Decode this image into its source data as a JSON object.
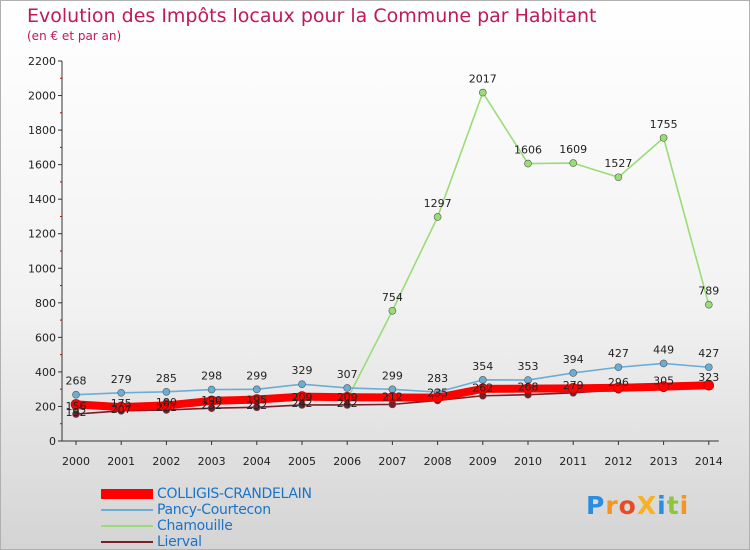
{
  "chart_data": {
    "type": "line",
    "title": "Evolution des Impôts locaux pour la Commune par Habitant",
    "subtitle": "(en € et par an)",
    "xlabel": "",
    "ylabel": "",
    "x": [
      "2000",
      "2001",
      "2002",
      "2003",
      "2004",
      "2005",
      "2006",
      "2007",
      "2008",
      "2009",
      "2010",
      "2011",
      "2012",
      "2013",
      "2014"
    ],
    "yticks": [
      0,
      200,
      400,
      600,
      800,
      1000,
      1200,
      1400,
      1600,
      1800,
      2000,
      2200
    ],
    "ylim": [
      0,
      2200
    ],
    "grid": false,
    "legend_position": "bottom-left",
    "series": [
      {
        "name": "COLLIGIS-CRANDELAIN",
        "color": "#ff0000",
        "values": [
          212,
          196,
          206,
          232,
          240,
          257,
          253,
          252,
          251,
          302,
          303,
          305,
          308,
          315,
          323
        ],
        "show_labels": false,
        "width": "thick"
      },
      {
        "name": "Pancy-Courtecon",
        "color": "#6aaed6",
        "values": [
          268,
          279,
          285,
          298,
          299,
          329,
          307,
          299,
          283,
          354,
          353,
          394,
          427,
          449,
          427
        ],
        "show_labels": true,
        "width": "thin"
      },
      {
        "name": "Chamouille",
        "color": "#99dd77",
        "values": [
          192,
          207,
          221,
          232,
          232,
          242,
          242,
          754,
          1297,
          2017,
          1606,
          1609,
          1527,
          1755,
          789
        ],
        "show_labels": true,
        "width": "thin"
      },
      {
        "name": "Lierval",
        "color": "#7a1c2a",
        "values": [
          156,
          175,
          180,
          190,
          195,
          209,
          209,
          212,
          235,
          262,
          268,
          279,
          296,
          305,
          323
        ],
        "show_labels": true,
        "width": "thin"
      }
    ]
  },
  "logo": {
    "text": "ProXiti",
    "colors": [
      "#2a8ee0",
      "#f7941d",
      "#e84a27",
      "#f7b21d",
      "#2a8ee0",
      "#8cc63f",
      "#f7941d"
    ]
  }
}
